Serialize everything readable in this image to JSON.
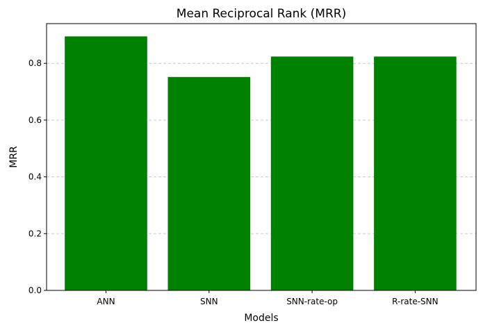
{
  "chart_data": {
    "type": "bar",
    "title": "Mean Reciprocal Rank (MRR)",
    "xlabel": "Models",
    "ylabel": "MRR",
    "categories": [
      "ANN",
      "SNN",
      "SNN-rate-op",
      "R-rate-SNN"
    ],
    "values": [
      0.895,
      0.752,
      0.824,
      0.824
    ],
    "ylim": [
      0,
      0.94
    ],
    "yticks": [
      0.0,
      0.2,
      0.4,
      0.6,
      0.8
    ],
    "ytick_labels": [
      "0.0",
      "0.2",
      "0.4",
      "0.6",
      "0.8"
    ],
    "grid": "y-dashed",
    "bar_color": "#008000",
    "grid_color": "#c8c8c8"
  }
}
